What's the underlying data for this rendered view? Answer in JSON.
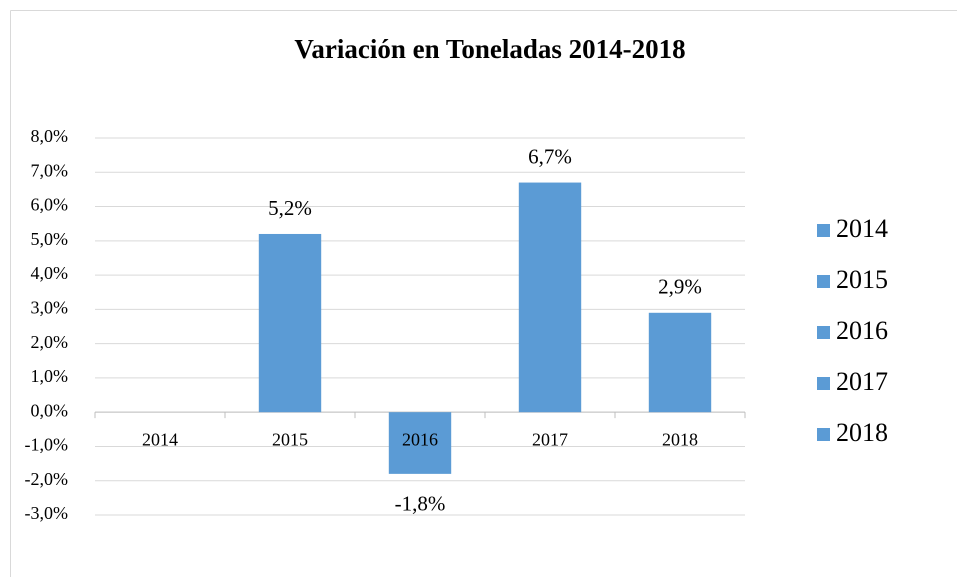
{
  "chart_data": {
    "type": "bar",
    "title": "Variación en Toneladas 2014-2018",
    "categories": [
      "2014",
      "2015",
      "2016",
      "2017",
      "2018"
    ],
    "values": [
      null,
      5.2,
      -1.8,
      6.7,
      2.9
    ],
    "value_labels": [
      null,
      "5,2%",
      "-1,8%",
      "6,7%",
      "2,9%"
    ],
    "color": "#5b9bd5",
    "ylim": [
      -3,
      8
    ],
    "yticks": [
      {
        "value": -3,
        "label": "-3,0%"
      },
      {
        "value": -2,
        "label": "-2,0%"
      },
      {
        "value": -1,
        "label": "-1,0%"
      },
      {
        "value": 0,
        "label": "0,0%"
      },
      {
        "value": 1,
        "label": "1,0%"
      },
      {
        "value": 2,
        "label": "2,0%"
      },
      {
        "value": 3,
        "label": "3,0%"
      },
      {
        "value": 4,
        "label": "4,0%"
      },
      {
        "value": 5,
        "label": "5,0%"
      },
      {
        "value": 6,
        "label": "6,0%"
      },
      {
        "value": 7,
        "label": "7,0%"
      },
      {
        "value": 8,
        "label": "8,0%"
      }
    ],
    "grid": true,
    "legend": "right"
  }
}
